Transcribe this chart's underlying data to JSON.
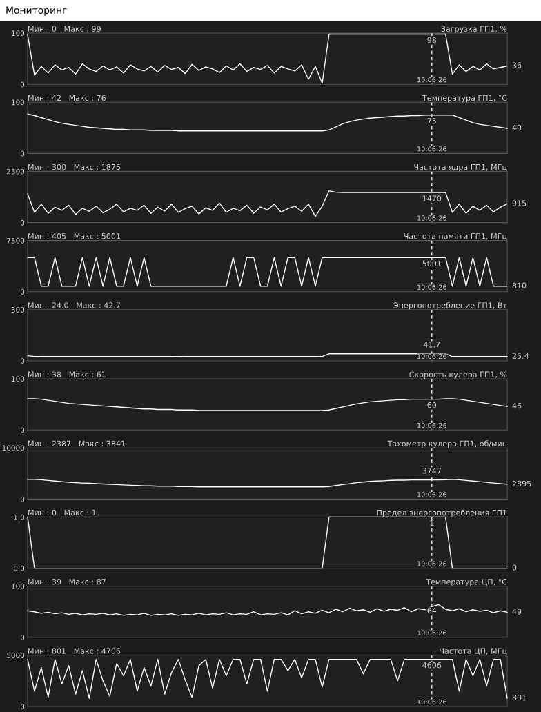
{
  "chart_data": [
    {
      "type": "line",
      "title": "Мониторинг",
      "subtitle": "Загрузка ГП1, %",
      "annotations": [
        "Мин : 0   Макс : 99",
        {
          "text": "98",
          "x": "10:06:26",
          "y": 98
        },
        "36"
      ],
      "ylim": [
        0,
        100
      ],
      "yticks": [
        0,
        100
      ],
      "ref_lines": [
        {
          "axis": "x",
          "value": "10:06:26",
          "line_style": "dashed",
          "color": "#ffffff"
        }
      ],
      "categories": [
        null,
        null,
        null,
        null,
        null,
        null,
        null,
        null,
        null,
        null,
        null,
        null,
        null,
        null,
        null,
        null,
        null,
        null,
        null,
        null,
        null,
        null,
        null,
        null,
        null,
        null,
        null,
        null,
        null,
        null,
        null,
        null,
        null,
        null,
        null,
        null,
        null,
        null,
        null,
        null,
        null,
        null,
        null,
        null,
        null,
        null,
        null,
        null,
        null,
        null,
        null,
        null,
        null,
        null,
        null,
        null,
        null,
        null,
        null,
        "10:06:26",
        null,
        null,
        null,
        null,
        null,
        null,
        null,
        null,
        null,
        null,
        null
      ],
      "series": [
        {
          "color": "#ffffff",
          "values": [
            97,
            18,
            35,
            22,
            38,
            28,
            33,
            20,
            40,
            30,
            25,
            36,
            28,
            34,
            22,
            38,
            30,
            26,
            35,
            24,
            37,
            29,
            33,
            21,
            39,
            27,
            34,
            30,
            23,
            36,
            28,
            40,
            25,
            33,
            29,
            37,
            22,
            35,
            30,
            26,
            38,
            10,
            35,
            2,
            98,
            98,
            98,
            98,
            98,
            98,
            98,
            98,
            98,
            98,
            98,
            98,
            98,
            98,
            98,
            98,
            98,
            98,
            20,
            38,
            25,
            35,
            28,
            40,
            30,
            33,
            36
          ]
        }
      ]
    },
    {
      "type": "line",
      "subtitle": "Температура ГП1, °C",
      "annotations": [
        "Мин : 42   Макс : 76",
        {
          "text": "75",
          "x": "10:06:26",
          "y": 75
        },
        "49"
      ],
      "ylim": [
        0,
        100
      ],
      "yticks": [
        0,
        100
      ],
      "ref_lines": [
        {
          "axis": "x",
          "value": "10:06:26",
          "line_style": "dashed",
          "color": "#ffffff"
        }
      ],
      "categories": [
        null,
        null,
        null,
        null,
        null,
        null,
        null,
        null,
        null,
        null,
        null,
        null,
        null,
        null,
        null,
        null,
        null,
        null,
        null,
        null,
        null,
        null,
        null,
        null,
        null,
        null,
        null,
        null,
        null,
        null,
        null,
        null,
        null,
        null,
        null,
        null,
        null,
        null,
        null,
        null,
        null,
        null,
        null,
        null,
        null,
        null,
        null,
        null,
        null,
        null,
        null,
        null,
        null,
        null,
        null,
        null,
        null,
        null,
        null,
        "10:06:26",
        null,
        null,
        null,
        null,
        null,
        null,
        null,
        null,
        null,
        null,
        null
      ],
      "series": [
        {
          "color": "#ffffff",
          "values": [
            77,
            74,
            70,
            66,
            62,
            59,
            57,
            55,
            53,
            51,
            50,
            49,
            48,
            47,
            47,
            46,
            46,
            46,
            45,
            45,
            45,
            45,
            44,
            44,
            44,
            44,
            44,
            44,
            44,
            44,
            44,
            44,
            44,
            44,
            44,
            44,
            44,
            44,
            44,
            44,
            44,
            44,
            44,
            44,
            46,
            52,
            58,
            62,
            65,
            67,
            69,
            70,
            71,
            72,
            73,
            73,
            74,
            74,
            75,
            75,
            75,
            75,
            75,
            70,
            65,
            60,
            57,
            55,
            53,
            51,
            49
          ]
        }
      ]
    },
    {
      "type": "line",
      "subtitle": "Частота ядра ГП1, МГц",
      "annotations": [
        "Мин : 300   Макс : 1875",
        {
          "text": "1470",
          "x": "10:06:26",
          "y": 1470
        },
        "915"
      ],
      "ylim": [
        0,
        2500
      ],
      "yticks": [
        0,
        2500
      ],
      "ref_lines": [
        {
          "axis": "x",
          "value": "10:06:26",
          "line_style": "dashed",
          "color": "#ffffff"
        }
      ],
      "categories": [
        null,
        null,
        null,
        null,
        null,
        null,
        null,
        null,
        null,
        null,
        null,
        null,
        null,
        null,
        null,
        null,
        null,
        null,
        null,
        null,
        null,
        null,
        null,
        null,
        null,
        null,
        null,
        null,
        null,
        null,
        null,
        null,
        null,
        null,
        null,
        null,
        null,
        null,
        null,
        null,
        null,
        null,
        null,
        null,
        null,
        null,
        null,
        null,
        null,
        null,
        null,
        null,
        null,
        null,
        null,
        null,
        null,
        null,
        null,
        "10:06:26",
        null,
        null,
        null,
        null,
        null,
        null,
        null,
        null,
        null,
        null,
        null
      ],
      "series": [
        {
          "color": "#ffffff",
          "values": [
            1400,
            500,
            900,
            450,
            750,
            600,
            850,
            400,
            700,
            550,
            800,
            480,
            650,
            900,
            520,
            700,
            600,
            850,
            450,
            750,
            560,
            900,
            500,
            680,
            800,
            420,
            720,
            600,
            950,
            500,
            700,
            580,
            850,
            460,
            760,
            620,
            900,
            510,
            680,
            800,
            550,
            900,
            300,
            800,
            1550,
            1480,
            1470,
            1470,
            1470,
            1470,
            1470,
            1470,
            1470,
            1470,
            1470,
            1470,
            1470,
            1470,
            1470,
            1470,
            1470,
            1470,
            500,
            900,
            450,
            800,
            600,
            850,
            520,
            750,
            915
          ]
        }
      ]
    },
    {
      "type": "line",
      "subtitle": "Частота памяти ГП1, МГц",
      "annotations": [
        "Мин : 405   Макс : 5001",
        {
          "text": "5001",
          "x": "10:06:26",
          "y": 5001
        },
        "810"
      ],
      "ylim": [
        0,
        7500
      ],
      "yticks": [
        0,
        7500
      ],
      "ref_lines": [
        {
          "axis": "x",
          "value": "10:06:26",
          "line_style": "dashed",
          "color": "#ffffff"
        }
      ],
      "categories": [
        null,
        null,
        null,
        null,
        null,
        null,
        null,
        null,
        null,
        null,
        null,
        null,
        null,
        null,
        null,
        null,
        null,
        null,
        null,
        null,
        null,
        null,
        null,
        null,
        null,
        null,
        null,
        null,
        null,
        null,
        null,
        null,
        null,
        null,
        null,
        null,
        null,
        null,
        null,
        null,
        null,
        null,
        null,
        null,
        null,
        null,
        null,
        null,
        null,
        null,
        null,
        null,
        null,
        null,
        null,
        null,
        null,
        null,
        null,
        "10:06:26",
        null,
        null,
        null,
        null,
        null,
        null,
        null,
        null,
        null,
        null,
        null
      ],
      "series": [
        {
          "color": "#ffffff",
          "values": [
            5001,
            5001,
            810,
            810,
            5001,
            810,
            810,
            810,
            5001,
            810,
            5001,
            810,
            5001,
            810,
            810,
            5001,
            810,
            5001,
            810,
            810,
            810,
            810,
            810,
            810,
            810,
            810,
            810,
            810,
            810,
            810,
            5001,
            810,
            5001,
            5001,
            810,
            810,
            5001,
            810,
            5001,
            5001,
            810,
            5001,
            810,
            5001,
            5001,
            5001,
            5001,
            5001,
            5001,
            5001,
            5001,
            5001,
            5001,
            5001,
            5001,
            5001,
            5001,
            5001,
            5001,
            5001,
            5001,
            5001,
            810,
            5001,
            810,
            5001,
            810,
            5001,
            810,
            810,
            810
          ]
        }
      ]
    },
    {
      "type": "line",
      "subtitle": "Энергопотребление ГП1, Вт",
      "annotations": [
        "Мин : 24.0   Макс : 42.7",
        {
          "text": "41.7",
          "x": "10:06:26",
          "y": 41.7
        },
        "25.4"
      ],
      "ylim": [
        0,
        300
      ],
      "yticks": [
        0,
        300
      ],
      "ref_lines": [
        {
          "axis": "x",
          "value": "10:06:26",
          "line_style": "dashed",
          "color": "#ffffff"
        }
      ],
      "categories": [
        null,
        null,
        null,
        null,
        null,
        null,
        null,
        null,
        null,
        null,
        null,
        null,
        null,
        null,
        null,
        null,
        null,
        null,
        null,
        null,
        null,
        null,
        null,
        null,
        null,
        null,
        null,
        null,
        null,
        null,
        null,
        null,
        null,
        null,
        null,
        null,
        null,
        null,
        null,
        null,
        null,
        null,
        null,
        null,
        null,
        null,
        null,
        null,
        null,
        null,
        null,
        null,
        null,
        null,
        null,
        null,
        null,
        null,
        null,
        "10:06:26",
        null,
        null,
        null,
        null,
        null,
        null,
        null,
        null,
        null,
        null,
        null
      ],
      "series": [
        {
          "color": "#ffffff",
          "values": [
            30,
            26,
            25,
            25,
            26,
            25,
            25,
            26,
            25,
            25,
            26,
            25,
            25,
            26,
            25,
            25,
            26,
            25,
            25,
            26,
            25,
            25,
            26,
            25,
            25,
            26,
            25,
            25,
            26,
            25,
            25,
            26,
            25,
            25,
            26,
            25,
            25,
            26,
            25,
            25,
            26,
            25,
            25,
            26,
            41.7,
            41.7,
            41.7,
            41.7,
            41.7,
            41.7,
            41.7,
            41.7,
            41.7,
            41.7,
            41.7,
            41.7,
            41.7,
            41.7,
            41.7,
            41.7,
            41.7,
            41.7,
            25,
            26,
            25,
            25,
            26,
            25,
            25,
            26,
            25.4
          ]
        }
      ]
    },
    {
      "type": "line",
      "subtitle": "Скорость кулера ГП1, %",
      "annotations": [
        "Мин : 38   Макс : 61",
        {
          "text": "60",
          "x": "10:06:26",
          "y": 60
        },
        "46"
      ],
      "ylim": [
        0,
        100
      ],
      "yticks": [
        0,
        100
      ],
      "ref_lines": [
        {
          "axis": "x",
          "value": "10:06:26",
          "line_style": "dashed",
          "color": "#ffffff"
        }
      ],
      "categories": [
        null,
        null,
        null,
        null,
        null,
        null,
        null,
        null,
        null,
        null,
        null,
        null,
        null,
        null,
        null,
        null,
        null,
        null,
        null,
        null,
        null,
        null,
        null,
        null,
        null,
        null,
        null,
        null,
        null,
        null,
        null,
        null,
        null,
        null,
        null,
        null,
        null,
        null,
        null,
        null,
        null,
        null,
        null,
        null,
        null,
        null,
        null,
        null,
        null,
        null,
        null,
        null,
        null,
        null,
        null,
        null,
        null,
        null,
        null,
        "10:06:26",
        null,
        null,
        null,
        null,
        null,
        null,
        null,
        null,
        null,
        null,
        null
      ],
      "series": [
        {
          "color": "#ffffff",
          "values": [
            61,
            61,
            60,
            58,
            56,
            54,
            52,
            51,
            50,
            49,
            48,
            47,
            46,
            45,
            44,
            43,
            42,
            41,
            41,
            40,
            40,
            40,
            39,
            39,
            39,
            38,
            38,
            38,
            38,
            38,
            38,
            38,
            38,
            38,
            38,
            38,
            38,
            38,
            38,
            38,
            38,
            38,
            38,
            38,
            39,
            42,
            45,
            48,
            51,
            53,
            55,
            56,
            57,
            58,
            59,
            59,
            60,
            60,
            60,
            60,
            60,
            61,
            61,
            60,
            58,
            56,
            54,
            52,
            50,
            48,
            46
          ]
        }
      ]
    },
    {
      "type": "line",
      "subtitle": "Тахометр кулера ГП1, об/мин",
      "annotations": [
        "Мин : 2387   Макс : 3841",
        {
          "text": "3747",
          "x": "10:06:26",
          "y": 3747
        },
        "2895"
      ],
      "ylim": [
        0,
        10000
      ],
      "yticks": [
        0,
        10000
      ],
      "ref_lines": [
        {
          "axis": "x",
          "value": "10:06:26",
          "line_style": "dashed",
          "color": "#ffffff"
        }
      ],
      "categories": [
        null,
        null,
        null,
        null,
        null,
        null,
        null,
        null,
        null,
        null,
        null,
        null,
        null,
        null,
        null,
        null,
        null,
        null,
        null,
        null,
        null,
        null,
        null,
        null,
        null,
        null,
        null,
        null,
        null,
        null,
        null,
        null,
        null,
        null,
        null,
        null,
        null,
        null,
        null,
        null,
        null,
        null,
        null,
        null,
        null,
        null,
        null,
        null,
        null,
        null,
        null,
        null,
        null,
        null,
        null,
        null,
        null,
        null,
        null,
        "10:06:26",
        null,
        null,
        null,
        null,
        null,
        null,
        null,
        null,
        null,
        null,
        null
      ],
      "series": [
        {
          "color": "#ffffff",
          "values": [
            3841,
            3840,
            3780,
            3650,
            3520,
            3400,
            3270,
            3200,
            3140,
            3080,
            3010,
            2950,
            2890,
            2830,
            2770,
            2700,
            2640,
            2580,
            2580,
            2510,
            2510,
            2510,
            2450,
            2450,
            2450,
            2387,
            2387,
            2387,
            2387,
            2387,
            2387,
            2387,
            2387,
            2387,
            2387,
            2387,
            2387,
            2387,
            2387,
            2387,
            2387,
            2387,
            2387,
            2387,
            2450,
            2640,
            2830,
            3010,
            3200,
            3330,
            3450,
            3520,
            3580,
            3650,
            3700,
            3700,
            3747,
            3747,
            3747,
            3747,
            3747,
            3800,
            3841,
            3780,
            3650,
            3520,
            3400,
            3270,
            3140,
            3020,
            2895
          ]
        }
      ]
    },
    {
      "type": "line",
      "subtitle": "Предел энергопотребления ГП1",
      "annotations": [
        "Мин : 0   Макс : 1",
        {
          "text": "1",
          "x": "10:06:26",
          "y": 1
        },
        "0"
      ],
      "ylim": [
        0,
        1
      ],
      "yticks": [
        {
          "value": 0,
          "label": "0.0"
        },
        {
          "value": 1,
          "label": "1.0"
        }
      ],
      "ref_lines": [
        {
          "axis": "x",
          "value": "10:06:26",
          "line_style": "dashed",
          "color": "#ffffff"
        }
      ],
      "categories": [
        null,
        null,
        null,
        null,
        null,
        null,
        null,
        null,
        null,
        null,
        null,
        null,
        null,
        null,
        null,
        null,
        null,
        null,
        null,
        null,
        null,
        null,
        null,
        null,
        null,
        null,
        null,
        null,
        null,
        null,
        null,
        null,
        null,
        null,
        null,
        null,
        null,
        null,
        null,
        null,
        null,
        null,
        null,
        null,
        null,
        null,
        null,
        null,
        null,
        null,
        null,
        null,
        null,
        null,
        null,
        null,
        null,
        null,
        null,
        "10:06:26",
        null,
        null,
        null,
        null,
        null,
        null,
        null,
        null,
        null,
        null,
        null
      ],
      "series": [
        {
          "color": "#ffffff",
          "values": [
            1,
            0,
            0,
            0,
            0,
            0,
            0,
            0,
            0,
            0,
            0,
            0,
            0,
            0,
            0,
            0,
            0,
            0,
            0,
            0,
            0,
            0,
            0,
            0,
            0,
            0,
            0,
            0,
            0,
            0,
            0,
            0,
            0,
            0,
            0,
            0,
            0,
            0,
            0,
            0,
            0,
            0,
            0,
            0,
            1,
            1,
            1,
            1,
            1,
            1,
            1,
            1,
            1,
            1,
            1,
            1,
            1,
            1,
            1,
            1,
            1,
            1,
            0,
            0,
            0,
            0,
            0,
            0,
            0,
            0,
            0
          ]
        }
      ]
    },
    {
      "type": "line",
      "subtitle": "Температура ЦП, °C",
      "annotations": [
        "Мин : 39   Макс : 87",
        {
          "text": "64",
          "x": "10:06:26",
          "y": 64
        },
        "49"
      ],
      "ylim": [
        0,
        100
      ],
      "yticks": [
        0,
        100
      ],
      "ref_lines": [
        {
          "axis": "x",
          "value": "10:06:26",
          "line_style": "dashed",
          "color": "#ffffff"
        }
      ],
      "categories": [
        null,
        null,
        null,
        null,
        null,
        null,
        null,
        null,
        null,
        null,
        null,
        null,
        null,
        null,
        null,
        null,
        null,
        null,
        null,
        null,
        null,
        null,
        null,
        null,
        null,
        null,
        null,
        null,
        null,
        null,
        null,
        null,
        null,
        null,
        null,
        null,
        null,
        null,
        null,
        null,
        null,
        null,
        null,
        null,
        null,
        null,
        null,
        null,
        null,
        null,
        null,
        null,
        null,
        null,
        null,
        null,
        null,
        null,
        null,
        "10:06:26",
        null,
        null,
        null,
        null,
        null,
        null,
        null,
        null,
        null,
        null,
        null
      ],
      "series": [
        {
          "color": "#ffffff",
          "values": [
            52,
            50,
            47,
            49,
            46,
            48,
            45,
            47,
            44,
            46,
            45,
            47,
            44,
            46,
            43,
            45,
            44,
            47,
            43,
            45,
            44,
            46,
            43,
            45,
            44,
            47,
            44,
            46,
            45,
            48,
            44,
            46,
            45,
            50,
            44,
            46,
            45,
            48,
            44,
            52,
            46,
            50,
            47,
            53,
            48,
            55,
            50,
            57,
            52,
            54,
            49,
            56,
            51,
            55,
            53,
            58,
            50,
            56,
            54,
            60,
            64,
            55,
            52,
            56,
            50,
            54,
            51,
            53,
            48,
            52,
            49
          ]
        }
      ]
    },
    {
      "type": "line",
      "subtitle": "Частота ЦП, МГц",
      "annotations": [
        "Мин : 801   Макс : 4706",
        {
          "text": "4606",
          "x": "10:06:26",
          "y": 4606
        },
        "801"
      ],
      "ylim": [
        0,
        5000
      ],
      "yticks": [
        0,
        5000
      ],
      "ref_lines": [
        {
          "axis": "x",
          "value": "10:06:26",
          "line_style": "dashed",
          "color": "#ffffff"
        }
      ],
      "categories": [
        null,
        null,
        null,
        null,
        null,
        null,
        null,
        null,
        null,
        null,
        null,
        null,
        null,
        null,
        null,
        null,
        null,
        null,
        null,
        null,
        null,
        null,
        null,
        null,
        null,
        null,
        null,
        null,
        null,
        null,
        null,
        null,
        null,
        null,
        null,
        null,
        null,
        null,
        null,
        null,
        null,
        null,
        null,
        null,
        null,
        null,
        null,
        null,
        null,
        null,
        null,
        null,
        null,
        null,
        null,
        null,
        null,
        null,
        null,
        "10:06:26",
        null,
        null,
        null,
        null,
        null,
        null,
        null,
        null,
        null,
        null,
        null
      ],
      "series": [
        {
          "color": "#ffffff",
          "values": [
            4606,
            1500,
            3800,
            900,
            4606,
            2200,
            4000,
            1200,
            3500,
            800,
            4606,
            2500,
            1000,
            4200,
            3000,
            4606,
            1500,
            3800,
            2000,
            4606,
            1200,
            3300,
            4606,
            2600,
            900,
            4000,
            4606,
            1800,
            4606,
            3000,
            4606,
            4606,
            2200,
            4606,
            4606,
            1500,
            4606,
            4606,
            3500,
            4606,
            2800,
            4606,
            4606,
            1900,
            4606,
            4606,
            4606,
            4606,
            4606,
            3200,
            4606,
            4606,
            4606,
            4606,
            2500,
            4606,
            4606,
            4606,
            4606,
            4606,
            4606,
            4606,
            4606,
            1500,
            4606,
            3000,
            4606,
            2000,
            4606,
            4606,
            801
          ]
        }
      ]
    }
  ]
}
